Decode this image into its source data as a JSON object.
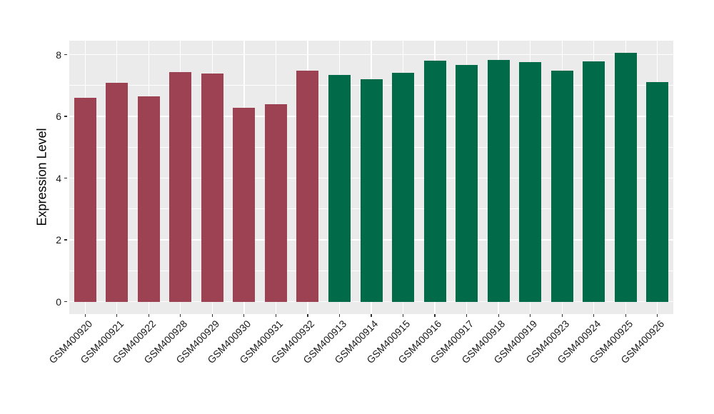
{
  "chart_data": {
    "type": "bar",
    "title": "",
    "xlabel": "",
    "ylabel": "Expression Level",
    "ylim": [
      0,
      8.45
    ],
    "yticks": [
      0,
      2,
      4,
      6,
      8
    ],
    "grid": "white major gridlines at even values, minor at odd values, vertical major per category, on grey panel",
    "legend": "none",
    "categories": [
      "GSM400920",
      "GSM400921",
      "GSM400922",
      "GSM400928",
      "GSM400929",
      "GSM400930",
      "GSM400931",
      "GSM400932",
      "GSM400913",
      "GSM400914",
      "GSM400915",
      "GSM400916",
      "GSM400917",
      "GSM400918",
      "GSM400919",
      "GSM400923",
      "GSM400924",
      "GSM400925",
      "GSM400926"
    ],
    "values": [
      6.59,
      7.09,
      6.64,
      7.44,
      7.38,
      6.28,
      6.39,
      7.47,
      7.34,
      7.2,
      7.42,
      7.8,
      7.67,
      7.82,
      7.76,
      7.48,
      7.78,
      8.06,
      7.11
    ],
    "groups": [
      "group1",
      "group1",
      "group1",
      "group1",
      "group1",
      "group1",
      "group1",
      "group1",
      "group2",
      "group2",
      "group2",
      "group2",
      "group2",
      "group2",
      "group2",
      "group2",
      "group2",
      "group2",
      "group2"
    ],
    "group_colors": {
      "group1": "#9D4252",
      "group2": "#016A49"
    },
    "colors": {
      "figure_background": "#FFFFFF",
      "panel_background": "#EBEBEB",
      "grid": "#FFFFFF",
      "tick_mark": "#333333",
      "axis_text": "#1A1A1A",
      "axis_title": "#000000"
    }
  }
}
